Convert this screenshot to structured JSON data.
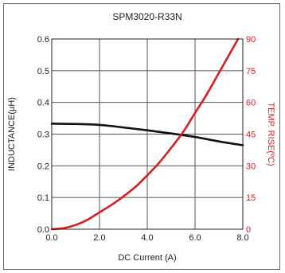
{
  "chart_data": {
    "type": "line",
    "title": "SPM3020-R33N",
    "xlabel": "DC Current (A)",
    "ylabel": "INDUCTANCE(μH)",
    "y2label": "TEMP. RISE(ºC)",
    "xlim": [
      0,
      8
    ],
    "ylim": [
      0,
      0.6
    ],
    "y2lim": [
      0,
      90
    ],
    "x_ticks": [
      "0.0",
      "2.0",
      "4.0",
      "6.0",
      "8.0"
    ],
    "y_ticks": [
      "0.0",
      "0.1",
      "0.2",
      "0.3",
      "0.4",
      "0.5",
      "0.6"
    ],
    "y2_ticks": [
      "0",
      "15",
      "30",
      "45",
      "60",
      "75",
      "90"
    ],
    "grid": true,
    "colors": {
      "inductance": "#111111",
      "temp_rise": "#d62020"
    },
    "series": [
      {
        "axis": "left",
        "x": [
          0,
          1,
          2,
          3,
          4,
          5,
          6,
          7,
          8
        ],
        "values": [
          0.333,
          0.332,
          0.329,
          0.321,
          0.312,
          0.302,
          0.291,
          0.277,
          0.265
        ]
      },
      {
        "axis": "right",
        "x": [
          0,
          0.5,
          1,
          1.5,
          2,
          2.5,
          3,
          3.5,
          4,
          4.5,
          5,
          5.5,
          6,
          6.5,
          7,
          7.5,
          7.8
        ],
        "values": [
          0,
          0.5,
          2,
          4.5,
          8,
          11.5,
          15.5,
          20,
          25.5,
          31.5,
          38.5,
          46,
          55,
          64,
          74,
          84,
          90
        ]
      }
    ]
  }
}
